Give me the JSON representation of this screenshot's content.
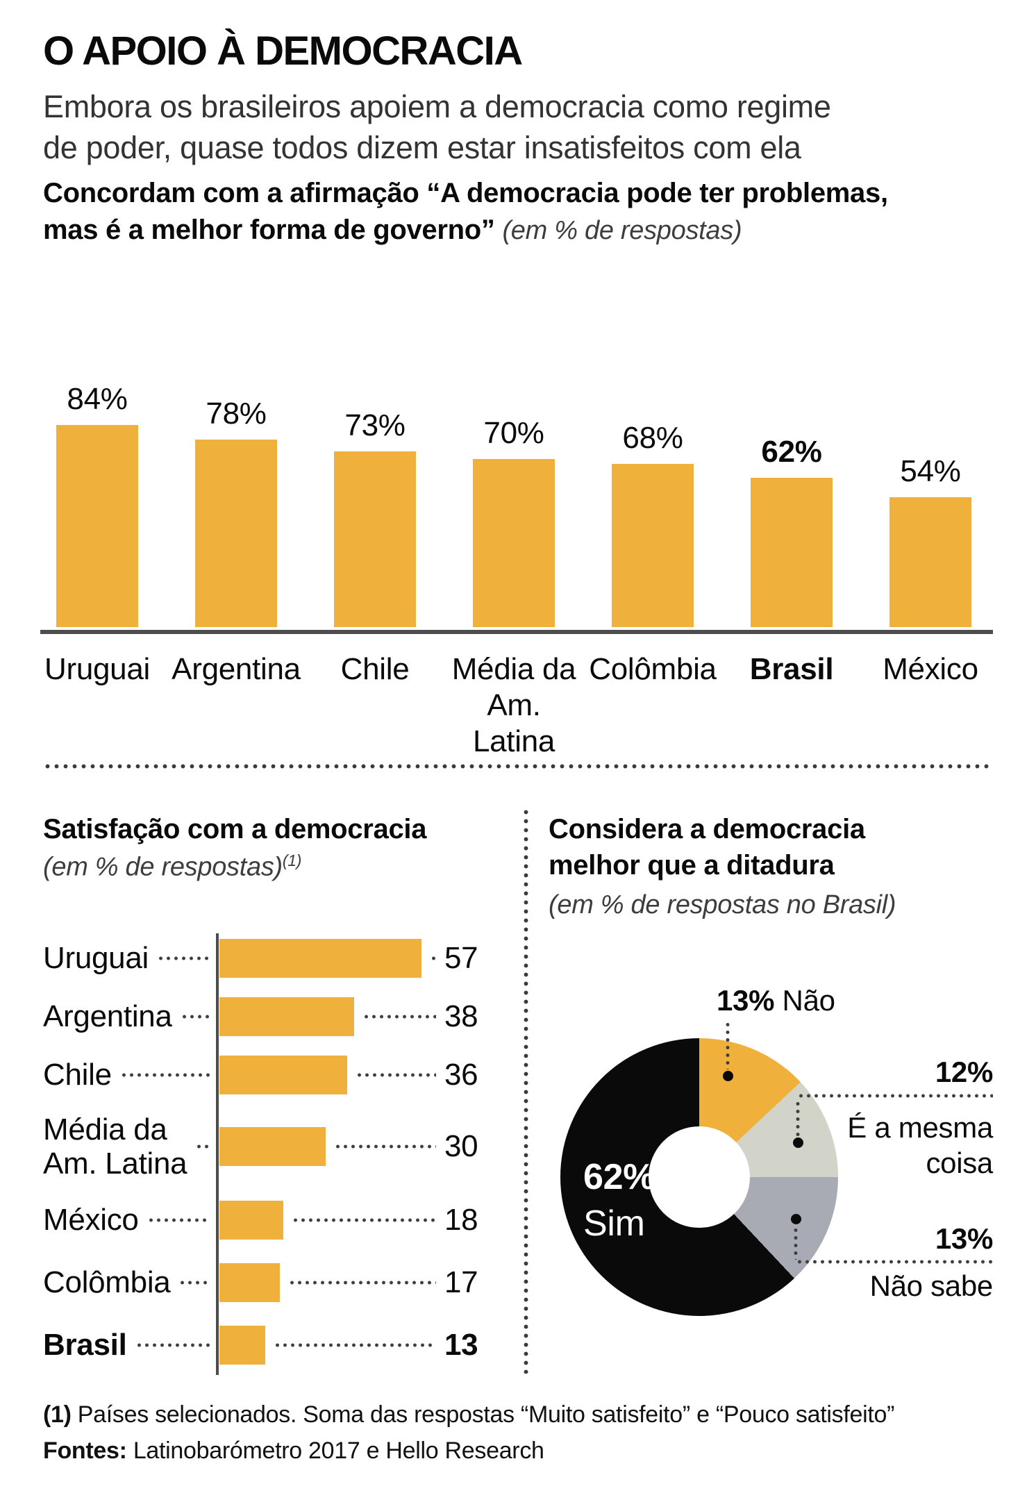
{
  "header": {
    "title": "O APOIO À DEMOCRACIA",
    "subtitle": "Embora os brasileiros apoiem a democracia como regime\nde poder, quase todos dizem estar insatisfeitos com ela"
  },
  "colors": {
    "accent": "#F0B13C",
    "ink": "#0A0A0A",
    "axis": "#4D4D4D",
    "note_gray": "#3D3D3D",
    "slice_light_gray": "#D2D4CA",
    "slice_blue_gray": "#A8ABB4",
    "slice_black": "#0A0A0A"
  },
  "chart_data": [
    {
      "id": "support-democracy",
      "type": "bar",
      "orientation": "vertical",
      "title": "Concordam com a afirmação “A democracia pode ter problemas, mas é a melhor forma de governo”",
      "title_line1": "Concordam com a afirmação “A democracia pode ter problemas,",
      "title_line2": "mas é a melhor forma de governo”",
      "note": "(em % de respostas)",
      "categories": [
        "Uruguai",
        "Argentina",
        "Chile",
        "Média da Am. Latina",
        "Colômbia",
        "Brasil",
        "México"
      ],
      "category_display": [
        "Uruguai",
        "Argentina",
        "Chile",
        "Média da\nAm. Latina",
        "Colômbia",
        "Brasil",
        "México"
      ],
      "values": [
        84,
        78,
        73,
        70,
        68,
        62,
        54
      ],
      "value_labels": [
        "84%",
        "78%",
        "73%",
        "70%",
        "68%",
        "62%",
        "54%"
      ],
      "highlight_index": 5,
      "ylim": [
        0,
        100
      ],
      "grid": false,
      "legend": "none"
    },
    {
      "id": "satisfaction-democracy",
      "type": "bar",
      "orientation": "horizontal",
      "title": "Satisfação com a democracia",
      "note": "(em % de respostas)",
      "note_sup": "(1)",
      "categories": [
        "Uruguai",
        "Argentina",
        "Chile",
        "Média da Am. Latina",
        "México",
        "Colômbia",
        "Brasil"
      ],
      "category_display": [
        "Uruguai",
        "Argentina",
        "Chile",
        "Média da\nAm. Latina",
        "México",
        "Colômbia",
        "Brasil"
      ],
      "values": [
        57,
        38,
        36,
        30,
        18,
        17,
        13
      ],
      "value_labels": [
        "57",
        "38",
        "36",
        "30",
        "18",
        "17",
        "13"
      ],
      "highlight_index": 6,
      "xlim": [
        0,
        60
      ],
      "grid": false,
      "legend": "none"
    },
    {
      "id": "democracy-vs-dictatorship",
      "type": "pie",
      "donut": true,
      "title": "Considera a democracia melhor que a ditadura",
      "title_line1": "Considera a democracia",
      "title_line2": "melhor que a ditadura",
      "note": "(em % de respostas no Brasil)",
      "start_angle_deg": 0,
      "clockwise": true,
      "slices": [
        {
          "label": "Não",
          "value": 13,
          "display": "13%",
          "color": "#F0B13C"
        },
        {
          "label": "É a mesma coisa",
          "label_display": "É a mesma\ncoisa",
          "value": 12,
          "display": "12%",
          "color": "#D2D4CA"
        },
        {
          "label": "Não sabe",
          "value": 13,
          "display": "13%",
          "color": "#A8ABB4"
        },
        {
          "label": "Sim",
          "value": 62,
          "display": "62%",
          "color": "#0A0A0A"
        }
      ]
    }
  ],
  "footnote": {
    "marker": "(1)",
    "text": " Países selecionados. Soma das respostas “Muito satisfeito” e “Pouco satisfeito”",
    "sources_label": "Fontes:",
    "sources": " Latinobarómetro 2017 e Hello Research"
  }
}
